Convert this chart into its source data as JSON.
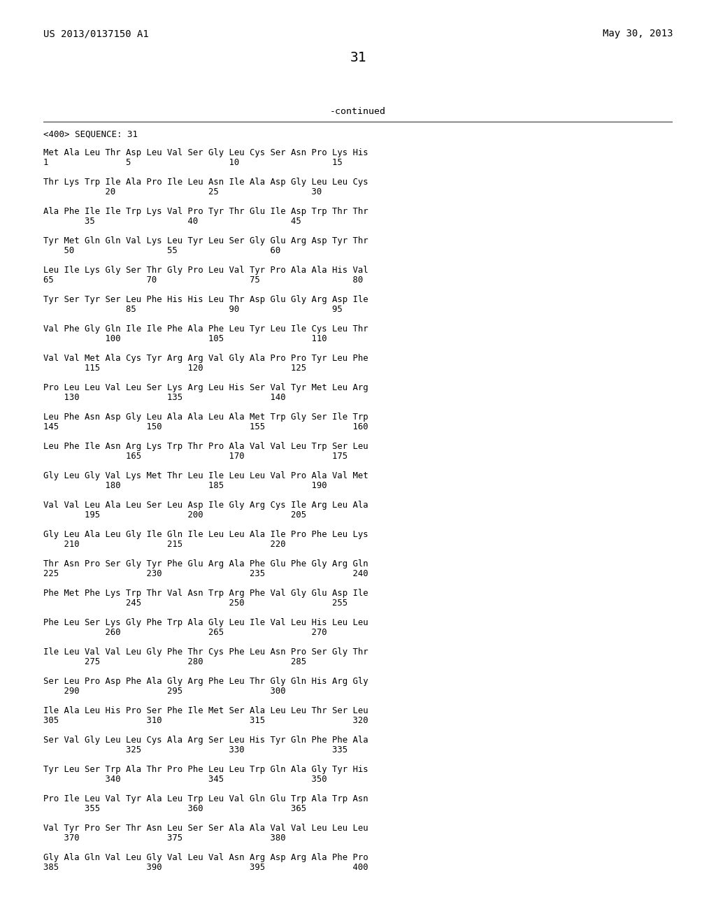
{
  "header_left": "US 2013/0137150 A1",
  "header_right": "May 30, 2013",
  "page_number": "31",
  "continued_label": "-continued",
  "sequence_header": "<400> SEQUENCE: 31",
  "sequence_lines": [
    [
      "Met Ala Leu Thr Asp Leu Val Ser Gly Leu Cys Ser Asn Pro Lys His",
      "1               5                   10                  15"
    ],
    [
      "Thr Lys Trp Ile Ala Pro Ile Leu Asn Ile Ala Asp Gly Leu Leu Cys",
      "            20                  25                  30"
    ],
    [
      "Ala Phe Ile Ile Trp Lys Val Pro Tyr Thr Glu Ile Asp Trp Thr Thr",
      "        35                  40                  45"
    ],
    [
      "Tyr Met Gln Gln Val Lys Leu Tyr Leu Ser Gly Glu Arg Asp Tyr Thr",
      "    50                  55                  60"
    ],
    [
      "Leu Ile Lys Gly Ser Thr Gly Pro Leu Val Tyr Pro Ala Ala His Val",
      "65                  70                  75                  80"
    ],
    [
      "Tyr Ser Tyr Ser Leu Phe His His Leu Thr Asp Glu Gly Arg Asp Ile",
      "                85                  90                  95"
    ],
    [
      "Val Phe Gly Gln Ile Ile Phe Ala Phe Leu Tyr Leu Ile Cys Leu Thr",
      "            100                 105                 110"
    ],
    [
      "Val Val Met Ala Cys Tyr Arg Arg Val Gly Ala Pro Pro Tyr Leu Phe",
      "        115                 120                 125"
    ],
    [
      "Pro Leu Leu Val Leu Ser Lys Arg Leu His Ser Val Tyr Met Leu Arg",
      "    130                 135                 140"
    ],
    [
      "Leu Phe Asn Asp Gly Leu Ala Ala Leu Ala Met Trp Gly Ser Ile Trp",
      "145                 150                 155                 160"
    ],
    [
      "Leu Phe Ile Asn Arg Lys Trp Thr Pro Ala Val Val Leu Trp Ser Leu",
      "                165                 170                 175"
    ],
    [
      "Gly Leu Gly Val Lys Met Thr Leu Ile Leu Leu Val Pro Ala Val Met",
      "            180                 185                 190"
    ],
    [
      "Val Val Leu Ala Leu Ser Leu Asp Ile Gly Arg Cys Ile Arg Leu Ala",
      "        195                 200                 205"
    ],
    [
      "Gly Leu Ala Leu Gly Ile Gln Ile Leu Leu Ala Ile Pro Phe Leu Lys",
      "    210                 215                 220"
    ],
    [
      "Thr Asn Pro Ser Gly Tyr Phe Glu Arg Ala Phe Glu Phe Gly Arg Gln",
      "225                 230                 235                 240"
    ],
    [
      "Phe Met Phe Lys Trp Thr Val Asn Trp Arg Phe Val Gly Glu Asp Ile",
      "                245                 250                 255"
    ],
    [
      "Phe Leu Ser Lys Gly Phe Trp Ala Gly Leu Ile Val Leu His Leu Leu",
      "            260                 265                 270"
    ],
    [
      "Ile Leu Val Val Leu Gly Phe Thr Cys Phe Leu Asn Pro Ser Gly Thr",
      "        275                 280                 285"
    ],
    [
      "Ser Leu Pro Asp Phe Ala Gly Arg Phe Leu Thr Gly Gln His Arg Gly",
      "    290                 295                 300"
    ],
    [
      "Ile Ala Leu His Pro Ser Phe Ile Met Ser Ala Leu Leu Thr Ser Leu",
      "305                 310                 315                 320"
    ],
    [
      "Ser Val Gly Leu Leu Cys Ala Arg Ser Leu His Tyr Gln Phe Phe Ala",
      "                325                 330                 335"
    ],
    [
      "Tyr Leu Ser Trp Ala Thr Pro Phe Leu Leu Trp Gln Ala Gly Tyr His",
      "            340                 345                 350"
    ],
    [
      "Pro Ile Leu Val Tyr Ala Leu Trp Leu Val Gln Glu Trp Ala Trp Asn",
      "        355                 360                 365"
    ],
    [
      "Val Tyr Pro Ser Thr Asn Leu Ser Ser Ala Ala Val Val Leu Leu Leu",
      "    370                 375                 380"
    ],
    [
      "Gly Ala Gln Val Leu Gly Val Leu Val Asn Arg Asp Arg Ala Phe Pro",
      "385                 390                 395                 400"
    ]
  ],
  "background_color": "#ffffff",
  "text_color": "#000000"
}
